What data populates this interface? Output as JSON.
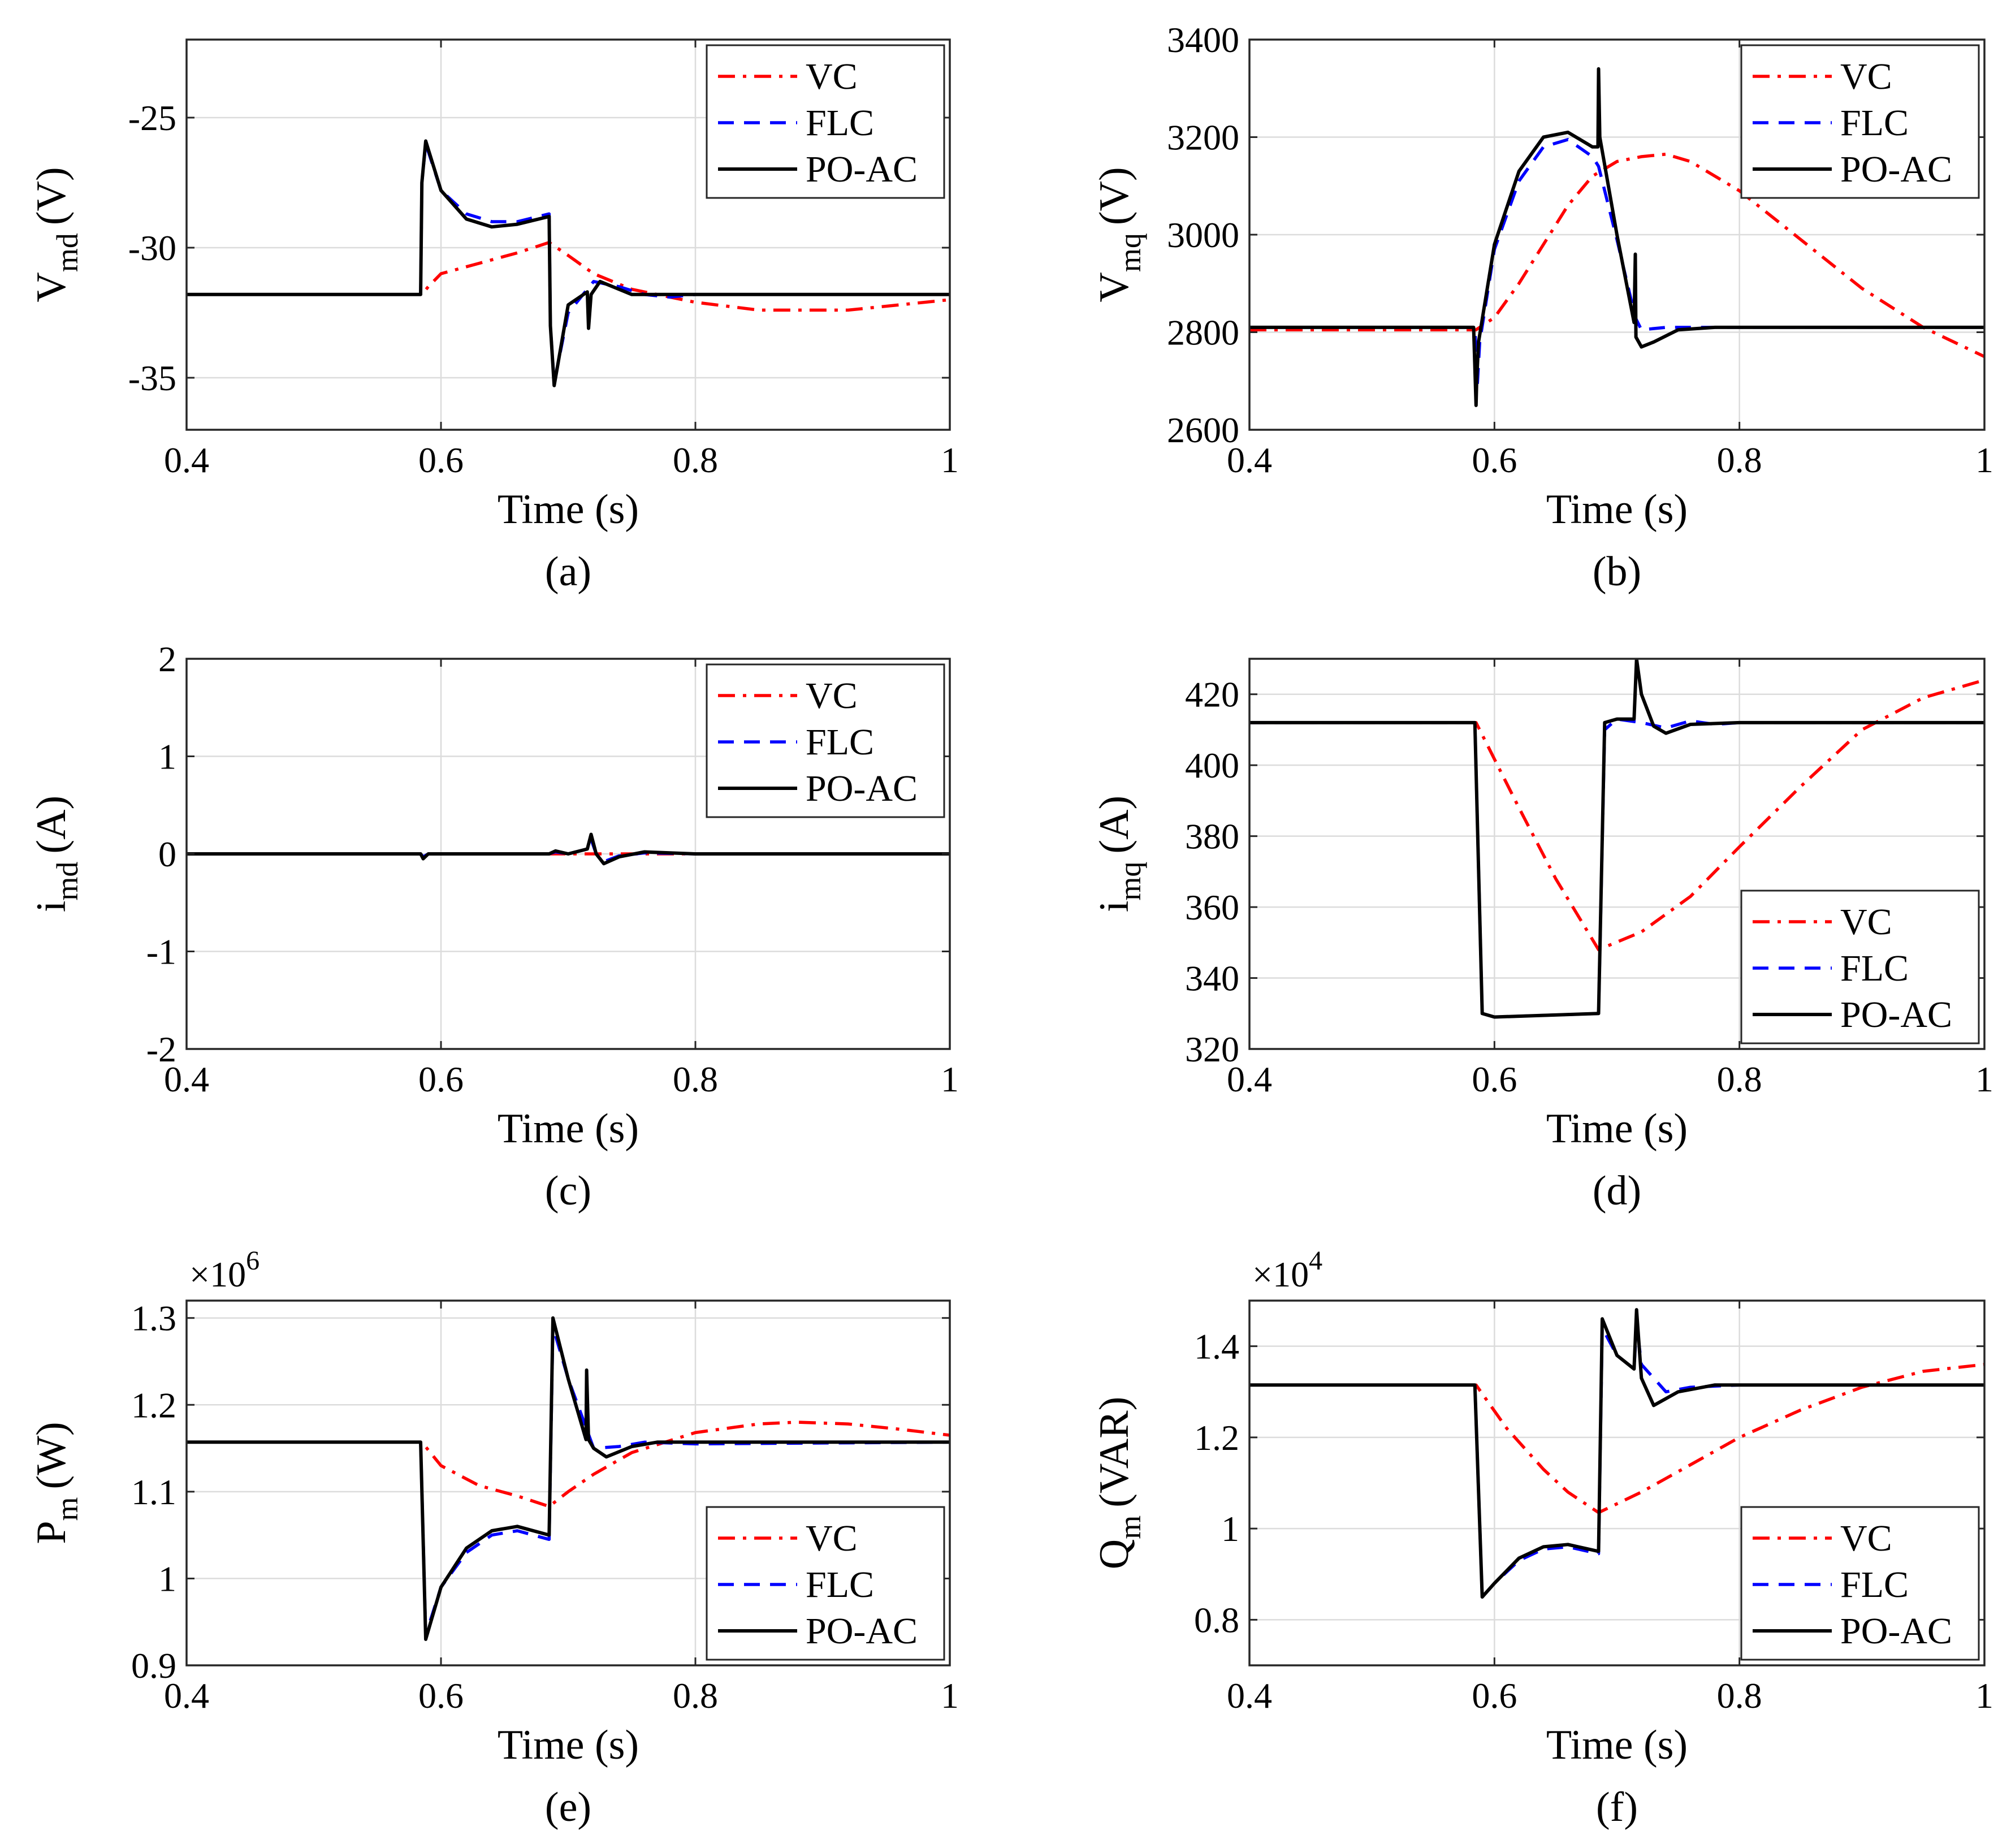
{
  "chart_data": [
    {
      "type": "line",
      "caption": "(a)",
      "xlabel": "Time (s)",
      "ylabel_main": "V",
      "ylabel_sub": "md",
      "ylabel_unit": "(V)",
      "xlim": [
        0.4,
        1
      ],
      "ylim": [
        -37,
        -22
      ],
      "xticks": [
        0.4,
        0.6,
        0.8,
        1
      ],
      "xtick_labels": [
        "0.4",
        "0.6",
        "0.8",
        "1"
      ],
      "yticks": [
        -35,
        -30,
        -25
      ],
      "ytick_labels": [
        "-35",
        "-30",
        "-25"
      ],
      "exponent_label": "",
      "legend_position": "top-right",
      "series": [
        {
          "name": "VC",
          "color": "#ff0000",
          "dash": "dashdot",
          "x": [
            0.4,
            0.585,
            0.59,
            0.6,
            0.63,
            0.66,
            0.685,
            0.7,
            0.72,
            0.75,
            0.8,
            0.85,
            0.88,
            0.92,
            0.96,
            1.0
          ],
          "y": [
            -31.8,
            -31.8,
            -31.5,
            -31.0,
            -30.6,
            -30.2,
            -29.8,
            -30.3,
            -31.0,
            -31.6,
            -32.1,
            -32.4,
            -32.4,
            -32.4,
            -32.2,
            -32.0
          ]
        },
        {
          "name": "FLC",
          "color": "#0000ff",
          "dash": "dash",
          "x": [
            0.4,
            0.584,
            0.585,
            0.588,
            0.6,
            0.62,
            0.64,
            0.66,
            0.685,
            0.686,
            0.689,
            0.7,
            0.72,
            0.74,
            0.76,
            0.78,
            0.8,
            1.0
          ],
          "y": [
            -31.8,
            -31.8,
            -27.5,
            -26.0,
            -27.8,
            -28.7,
            -29.0,
            -29.0,
            -28.7,
            -33.0,
            -35.2,
            -32.5,
            -31.3,
            -31.5,
            -31.8,
            -31.9,
            -31.8,
            -31.8
          ]
        },
        {
          "name": "PO-AC",
          "color": "#000000",
          "dash": "solid",
          "x": [
            0.4,
            0.584,
            0.585,
            0.588,
            0.6,
            0.62,
            0.64,
            0.66,
            0.685,
            0.686,
            0.689,
            0.7,
            0.715,
            0.716,
            0.718,
            0.725,
            0.735,
            0.75,
            0.77,
            0.8,
            1.0
          ],
          "y": [
            -31.8,
            -31.8,
            -27.5,
            -25.9,
            -27.8,
            -28.9,
            -29.2,
            -29.1,
            -28.8,
            -33.0,
            -35.3,
            -32.2,
            -31.7,
            -33.1,
            -31.8,
            -31.3,
            -31.5,
            -31.8,
            -31.8,
            -31.8,
            -31.8
          ]
        }
      ]
    },
    {
      "type": "line",
      "caption": "(b)",
      "xlabel": "Time (s)",
      "ylabel_main": "V",
      "ylabel_sub": "mq",
      "ylabel_unit": "(V)",
      "xlim": [
        0.4,
        1
      ],
      "ylim": [
        2600,
        3400
      ],
      "xticks": [
        0.4,
        0.6,
        0.8,
        1
      ],
      "xtick_labels": [
        "0.4",
        "0.6",
        "0.8",
        "1"
      ],
      "yticks": [
        2600,
        2800,
        3000,
        3200,
        3400
      ],
      "ytick_labels": [
        "2600",
        "2800",
        "3000",
        "3200",
        "3400"
      ],
      "exponent_label": "",
      "legend_position": "top-right",
      "series": [
        {
          "name": "VC",
          "color": "#ff0000",
          "dash": "dashdot",
          "x": [
            0.4,
            0.585,
            0.6,
            0.62,
            0.64,
            0.66,
            0.68,
            0.7,
            0.72,
            0.74,
            0.76,
            0.8,
            0.85,
            0.9,
            0.95,
            1.0
          ],
          "y": [
            2805,
            2805,
            2830,
            2900,
            2980,
            3060,
            3120,
            3150,
            3160,
            3165,
            3150,
            3090,
            2990,
            2890,
            2810,
            2750
          ]
        },
        {
          "name": "FLC",
          "color": "#0000ff",
          "dash": "dash",
          "x": [
            0.4,
            0.584,
            0.586,
            0.588,
            0.6,
            0.62,
            0.64,
            0.66,
            0.68,
            0.685,
            0.7,
            0.715,
            0.72,
            0.74,
            0.76,
            1.0
          ],
          "y": [
            2810,
            2810,
            2690,
            2780,
            2970,
            3110,
            3180,
            3195,
            3160,
            3140,
            2990,
            2830,
            2805,
            2810,
            2810,
            2810
          ]
        },
        {
          "name": "PO-AC",
          "color": "#000000",
          "dash": "solid",
          "x": [
            0.4,
            0.583,
            0.585,
            0.5855,
            0.587,
            0.6,
            0.62,
            0.64,
            0.66,
            0.68,
            0.6845,
            0.685,
            0.686,
            0.7,
            0.714,
            0.715,
            0.7155,
            0.72,
            0.73,
            0.75,
            0.78,
            1.0
          ],
          "y": [
            2810,
            2810,
            2650,
            2700,
            2780,
            2980,
            3130,
            3200,
            3210,
            3180,
            3180,
            3340,
            3200,
            3000,
            2820,
            2960,
            2790,
            2770,
            2780,
            2805,
            2810,
            2810
          ]
        }
      ]
    },
    {
      "type": "line",
      "caption": "(c)",
      "xlabel": "Time (s)",
      "ylabel_main": "i",
      "ylabel_sub": "md",
      "ylabel_unit": "(A)",
      "xlim": [
        0.4,
        1
      ],
      "ylim": [
        -2,
        2
      ],
      "xticks": [
        0.4,
        0.6,
        0.8,
        1
      ],
      "xtick_labels": [
        "0.4",
        "0.6",
        "0.8",
        "1"
      ],
      "yticks": [
        -2,
        -1,
        0,
        1,
        2
      ],
      "ytick_labels": [
        "-2",
        "-1",
        "0",
        "1",
        "2"
      ],
      "exponent_label": "",
      "legend_position": "top-right",
      "series": [
        {
          "name": "VC",
          "color": "#ff0000",
          "dash": "dashdot",
          "x": [
            0.4,
            1.0
          ],
          "y": [
            0,
            0
          ]
        },
        {
          "name": "FLC",
          "color": "#0000ff",
          "dash": "dash",
          "x": [
            0.4,
            0.584,
            0.586,
            0.59,
            0.685,
            0.69,
            0.7,
            0.715,
            0.718,
            0.722,
            0.73,
            0.74,
            0.76,
            0.8,
            1.0
          ],
          "y": [
            0,
            0,
            -0.03,
            0,
            0,
            0.02,
            0,
            0.05,
            0.15,
            0,
            -0.07,
            -0.02,
            0.01,
            0,
            0
          ]
        },
        {
          "name": "PO-AC",
          "color": "#000000",
          "dash": "solid",
          "x": [
            0.4,
            0.584,
            0.586,
            0.59,
            0.685,
            0.69,
            0.7,
            0.715,
            0.718,
            0.722,
            0.728,
            0.74,
            0.76,
            0.8,
            1.0
          ],
          "y": [
            0,
            0,
            -0.05,
            0,
            0,
            0.03,
            0,
            0.05,
            0.2,
            0,
            -0.1,
            -0.03,
            0.02,
            0,
            0
          ]
        }
      ]
    },
    {
      "type": "line",
      "caption": "(d)",
      "xlabel": "Time (s)",
      "ylabel_main": "i",
      "ylabel_sub": "mq",
      "ylabel_unit": "(A)",
      "xlim": [
        0.4,
        1
      ],
      "ylim": [
        320,
        430
      ],
      "xticks": [
        0.4,
        0.6,
        0.8,
        1
      ],
      "xtick_labels": [
        "0.4",
        "0.6",
        "0.8",
        "1"
      ],
      "yticks": [
        320,
        340,
        360,
        380,
        400,
        420
      ],
      "ytick_labels": [
        "320",
        "340",
        "360",
        "380",
        "400",
        "420"
      ],
      "exponent_label": "",
      "legend_position": "bottom-right",
      "series": [
        {
          "name": "VC",
          "color": "#ff0000",
          "dash": "dashdot",
          "x": [
            0.4,
            0.585,
            0.62,
            0.65,
            0.685,
            0.72,
            0.76,
            0.8,
            0.85,
            0.9,
            0.95,
            1.0
          ],
          "y": [
            412,
            412,
            388,
            368,
            348,
            353,
            363,
            377,
            394,
            410,
            419,
            424
          ]
        },
        {
          "name": "FLC",
          "color": "#0000ff",
          "dash": "dash",
          "x": [
            0.4,
            0.584,
            0.59,
            0.6,
            0.685,
            0.69,
            0.7,
            0.72,
            0.74,
            0.76,
            0.78,
            0.8,
            1.0
          ],
          "y": [
            412,
            412,
            330,
            329,
            330,
            410,
            413,
            412,
            410.5,
            412.5,
            411.5,
            412,
            412
          ]
        },
        {
          "name": "PO-AC",
          "color": "#000000",
          "dash": "solid",
          "x": [
            0.4,
            0.584,
            0.59,
            0.6,
            0.685,
            0.69,
            0.7,
            0.714,
            0.716,
            0.72,
            0.73,
            0.74,
            0.76,
            0.8,
            1.0
          ],
          "y": [
            412,
            412,
            330,
            329,
            330,
            412,
            413,
            413,
            430,
            420,
            411,
            409,
            411.5,
            412,
            412
          ]
        }
      ]
    },
    {
      "type": "line",
      "caption": "(e)",
      "xlabel": "Time (s)",
      "ylabel_main": "P",
      "ylabel_sub": "m",
      "ylabel_unit": "(W)",
      "xlim": [
        0.4,
        1
      ],
      "ylim": [
        0.9,
        1.32
      ],
      "xticks": [
        0.4,
        0.6,
        0.8,
        1
      ],
      "xtick_labels": [
        "0.4",
        "0.6",
        "0.8",
        "1"
      ],
      "yticks": [
        0.9,
        1.0,
        1.1,
        1.2,
        1.3
      ],
      "ytick_labels": [
        "0.9",
        "1",
        "1.1",
        "1.2",
        "1.3"
      ],
      "exponent_label": "×10",
      "exponent_power": "6",
      "legend_position": "bottom-right",
      "series": [
        {
          "name": "VC",
          "color": "#ff0000",
          "dash": "dashdot",
          "x": [
            0.4,
            0.585,
            0.6,
            0.63,
            0.66,
            0.685,
            0.7,
            0.72,
            0.75,
            0.8,
            0.85,
            0.88,
            0.92,
            0.96,
            1.0
          ],
          "y": [
            1.157,
            1.157,
            1.13,
            1.107,
            1.095,
            1.083,
            1.1,
            1.12,
            1.145,
            1.168,
            1.178,
            1.18,
            1.178,
            1.172,
            1.165
          ]
        },
        {
          "name": "FLC",
          "color": "#0000ff",
          "dash": "dash",
          "x": [
            0.4,
            0.584,
            0.588,
            0.6,
            0.62,
            0.64,
            0.66,
            0.685,
            0.688,
            0.7,
            0.715,
            0.72,
            0.74,
            0.76,
            0.8,
            1.0
          ],
          "y": [
            1.157,
            1.157,
            0.935,
            0.99,
            1.03,
            1.05,
            1.055,
            1.045,
            1.29,
            1.23,
            1.17,
            1.15,
            1.152,
            1.157,
            1.155,
            1.157
          ]
        },
        {
          "name": "PO-AC",
          "color": "#000000",
          "dash": "solid",
          "x": [
            0.4,
            0.584,
            0.588,
            0.6,
            0.62,
            0.64,
            0.66,
            0.685,
            0.688,
            0.7,
            0.714,
            0.7145,
            0.716,
            0.72,
            0.73,
            0.75,
            0.77,
            0.8,
            1.0
          ],
          "y": [
            1.157,
            1.157,
            0.93,
            0.99,
            1.035,
            1.055,
            1.06,
            1.05,
            1.3,
            1.23,
            1.16,
            1.24,
            1.16,
            1.15,
            1.14,
            1.152,
            1.157,
            1.157,
            1.157
          ]
        }
      ]
    },
    {
      "type": "line",
      "caption": "(f)",
      "xlabel": "Time (s)",
      "ylabel_main": "Q",
      "ylabel_sub": "m",
      "ylabel_unit": "(VAR)",
      "xlim": [
        0.4,
        1
      ],
      "ylim": [
        0.7,
        1.5
      ],
      "xticks": [
        0.4,
        0.6,
        0.8,
        1
      ],
      "xtick_labels": [
        "0.4",
        "0.6",
        "0.8",
        "1"
      ],
      "yticks": [
        0.8,
        1.0,
        1.2,
        1.4
      ],
      "ytick_labels": [
        "0.8",
        "1",
        "1.2",
        "1.4"
      ],
      "exponent_label": "×10",
      "exponent_power": "4",
      "legend_position": "bottom-right",
      "series": [
        {
          "name": "VC",
          "color": "#ff0000",
          "dash": "dashdot",
          "x": [
            0.4,
            0.585,
            0.61,
            0.64,
            0.66,
            0.685,
            0.72,
            0.76,
            0.8,
            0.85,
            0.9,
            0.95,
            1.0
          ],
          "y": [
            1.315,
            1.315,
            1.22,
            1.13,
            1.08,
            1.035,
            1.08,
            1.14,
            1.2,
            1.26,
            1.31,
            1.345,
            1.36
          ]
        },
        {
          "name": "FLC",
          "color": "#0000ff",
          "dash": "dash",
          "x": [
            0.4,
            0.584,
            0.59,
            0.6,
            0.62,
            0.64,
            0.66,
            0.685,
            0.688,
            0.7,
            0.714,
            0.716,
            0.72,
            0.74,
            0.76,
            0.8,
            1.0
          ],
          "y": [
            1.315,
            1.315,
            0.85,
            0.88,
            0.93,
            0.955,
            0.96,
            0.945,
            1.44,
            1.38,
            1.35,
            1.45,
            1.36,
            1.3,
            1.31,
            1.315,
            1.315
          ]
        },
        {
          "name": "PO-AC",
          "color": "#000000",
          "dash": "solid",
          "x": [
            0.4,
            0.584,
            0.59,
            0.6,
            0.62,
            0.64,
            0.66,
            0.685,
            0.688,
            0.7,
            0.714,
            0.716,
            0.72,
            0.73,
            0.75,
            0.78,
            0.8,
            1.0
          ],
          "y": [
            1.315,
            1.315,
            0.85,
            0.88,
            0.935,
            0.96,
            0.965,
            0.95,
            1.46,
            1.38,
            1.35,
            1.48,
            1.33,
            1.27,
            1.3,
            1.315,
            1.315,
            1.315
          ]
        }
      ]
    }
  ]
}
